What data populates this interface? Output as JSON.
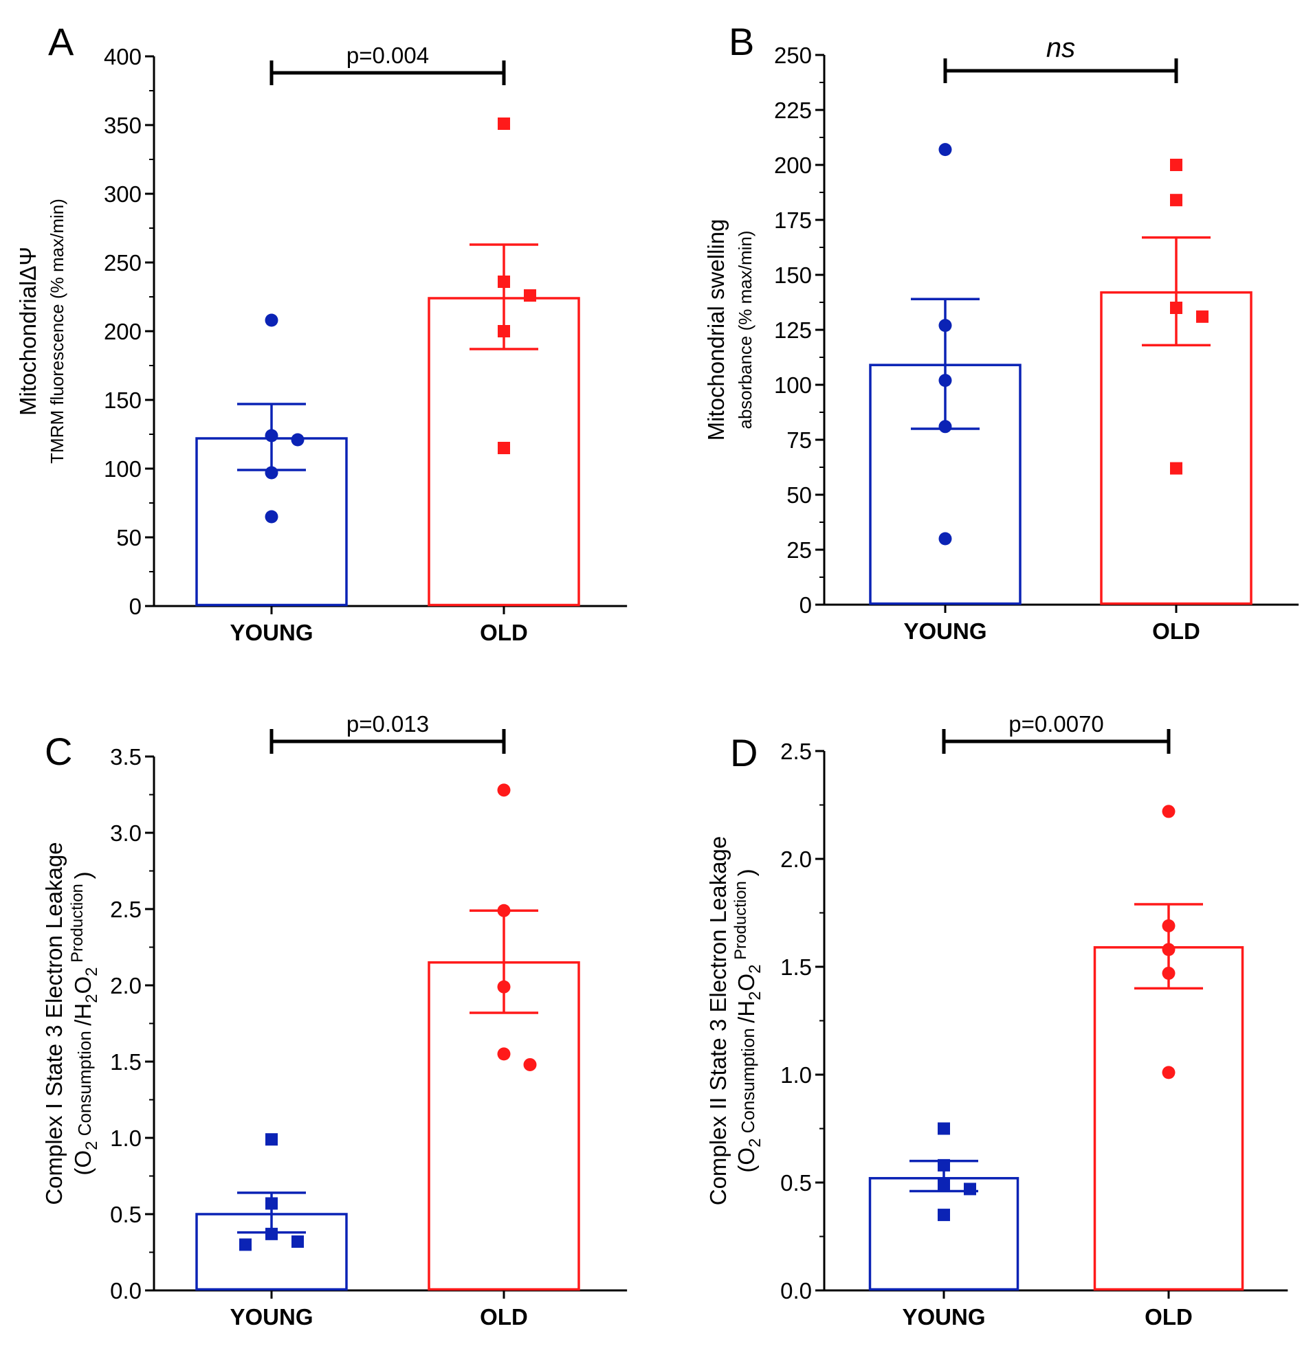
{
  "chart_data": [
    {
      "type": "bar",
      "panel": "A",
      "categories": [
        "YOUNG",
        "OLD"
      ],
      "series": [
        {
          "name": "YOUNG",
          "color": "#0b23b5",
          "marker": "circle",
          "mean": 122,
          "sem_upper": 147,
          "sem_lower": 99,
          "points": [
            208,
            124,
            121,
            97,
            65
          ]
        },
        {
          "name": "OLD",
          "color": "#ff1a1a",
          "marker": "square",
          "mean": 224,
          "sem_upper": 263,
          "sem_lower": 187,
          "points": [
            351,
            236,
            226,
            200,
            115
          ]
        }
      ],
      "ylabel": [
        "MitochondrialΔΨ",
        "TMRM  fluorescence (% max/min)"
      ],
      "ylim": [
        0,
        400
      ],
      "yticks": [
        0,
        50,
        100,
        150,
        200,
        250,
        300,
        350,
        400
      ],
      "ytick_labels": [
        "0",
        "50",
        "100",
        "150",
        "200",
        "250",
        "300",
        "350",
        "400"
      ],
      "significance": "p=0.004"
    },
    {
      "type": "bar",
      "panel": "B",
      "categories": [
        "YOUNG",
        "OLD"
      ],
      "series": [
        {
          "name": "YOUNG",
          "color": "#0b23b5",
          "marker": "circle",
          "mean": 109,
          "sem_upper": 139,
          "sem_lower": 80,
          "points": [
            207,
            127,
            102,
            81,
            30
          ]
        },
        {
          "name": "OLD",
          "color": "#ff1a1a",
          "marker": "square",
          "mean": 142,
          "sem_upper": 167,
          "sem_lower": 118,
          "points": [
            200,
            184,
            135,
            131,
            62
          ]
        }
      ],
      "ylabel": [
        "Mitochondrial swelling",
        "absorbance (% max/min)"
      ],
      "ylim": [
        0,
        250
      ],
      "yticks": [
        0,
        25,
        50,
        75,
        100,
        125,
        150,
        175,
        200,
        225,
        250
      ],
      "ytick_labels": [
        "0",
        "25",
        "50",
        "75",
        "100",
        "125",
        "150",
        "175",
        "200",
        "225",
        "250"
      ],
      "significance": "ns"
    },
    {
      "type": "bar",
      "panel": "C",
      "categories": [
        "YOUNG",
        "OLD"
      ],
      "series": [
        {
          "name": "YOUNG",
          "color": "#0b23b5",
          "marker": "square",
          "mean": 0.5,
          "sem_upper": 0.64,
          "sem_lower": 0.38,
          "points": [
            0.99,
            0.57,
            0.37,
            0.32,
            0.3
          ]
        },
        {
          "name": "OLD",
          "color": "#ff1a1a",
          "marker": "circle",
          "mean": 2.15,
          "sem_upper": 2.49,
          "sem_lower": 1.82,
          "points": [
            3.28,
            2.49,
            1.99,
            1.55,
            1.48
          ]
        }
      ],
      "ylabel": [
        "Complex I State 3 Electron Leakage"
      ],
      "ylabel_sub": {
        "open": "(O",
        "two1": "2",
        "consumption": "Consumption",
        "slash": "/H",
        "two2": "2",
        "o": "O",
        "two3": "2",
        "production": "Production",
        "close": ")"
      },
      "ylim": [
        0,
        3.5
      ],
      "yticks": [
        0,
        0.5,
        1.0,
        1.5,
        2.0,
        2.5,
        3.0,
        3.5
      ],
      "ytick_labels": [
        "0.0",
        "0.5",
        "1.0",
        "1.5",
        "2.0",
        "2.5",
        "3.0",
        "3.5"
      ],
      "significance": "p=0.013"
    },
    {
      "type": "bar",
      "panel": "D",
      "categories": [
        "YOUNG",
        "OLD"
      ],
      "series": [
        {
          "name": "YOUNG",
          "color": "#0b23b5",
          "marker": "square",
          "mean": 0.52,
          "sem_upper": 0.6,
          "sem_lower": 0.46,
          "points": [
            0.75,
            0.58,
            0.49,
            0.47,
            0.35
          ]
        },
        {
          "name": "OLD",
          "color": "#ff1a1a",
          "marker": "circle",
          "mean": 1.59,
          "sem_upper": 1.79,
          "sem_lower": 1.4,
          "points": [
            2.22,
            1.69,
            1.58,
            1.47,
            1.01
          ]
        }
      ],
      "ylabel": [
        "Complex II State 3 Electron Leakage"
      ],
      "ylabel_sub": {
        "open": "(O",
        "two1": "2",
        "consumption": "Consumption",
        "slash": "/H",
        "two2": "2",
        "o": "O",
        "two3": "2",
        "production": "Production",
        "close": ")"
      },
      "ylim": [
        0,
        2.5
      ],
      "yticks": [
        0,
        0.5,
        1.0,
        1.5,
        2.0,
        2.5
      ],
      "ytick_labels": [
        "0.0",
        "0.5",
        "1.0",
        "1.5",
        "2.0",
        "2.5"
      ],
      "significance": "p=0.0070"
    }
  ]
}
